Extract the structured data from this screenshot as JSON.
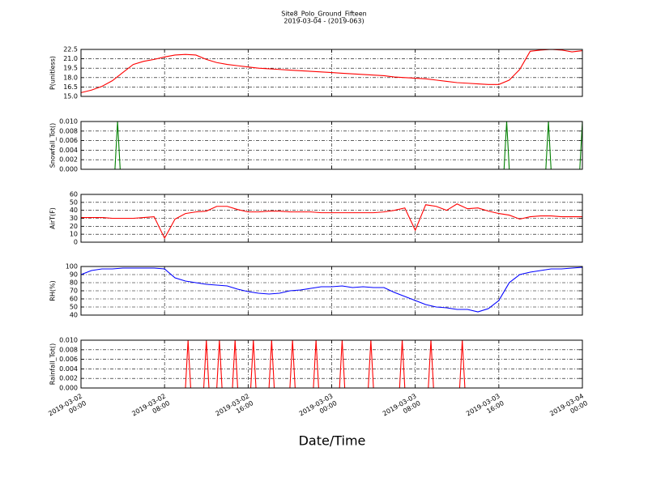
{
  "chart_data": [
    {
      "type": "line",
      "title": "Site8_Polo_Ground_Fifteen",
      "subtitle": "2019-03-04 - (2019-063)",
      "y_label": "P(unitless)",
      "color": "#ff0000",
      "grid": true,
      "xlim": [
        "2019-03-02 00:00",
        "2019-03-04 00:00"
      ],
      "ylim": [
        15,
        22.5
      ],
      "yticks": [
        {
          "value": 15,
          "label": "15.0"
        },
        16.5,
        {
          "value": 18,
          "label": "18.0"
        },
        19.5,
        {
          "value": 21,
          "label": "21.0"
        },
        22.5
      ],
      "x": [
        "2019-03-02 00:00",
        "2019-03-02 01:00",
        "2019-03-02 02:00",
        "2019-03-02 03:00",
        "2019-03-02 04:00",
        "2019-03-02 05:00",
        "2019-03-02 06:00",
        "2019-03-02 07:00",
        "2019-03-02 08:00",
        "2019-03-02 09:00",
        "2019-03-02 10:00",
        "2019-03-02 11:00",
        "2019-03-02 12:00",
        "2019-03-02 13:00",
        "2019-03-02 14:00",
        "2019-03-02 15:00",
        "2019-03-02 16:00",
        "2019-03-02 17:00",
        "2019-03-02 18:00",
        "2019-03-02 19:00",
        "2019-03-02 20:00",
        "2019-03-02 21:00",
        "2019-03-02 22:00",
        "2019-03-02 23:00",
        "2019-03-03 00:00",
        "2019-03-03 01:00",
        "2019-03-03 02:00",
        "2019-03-03 03:00",
        "2019-03-03 04:00",
        "2019-03-03 05:00",
        "2019-03-03 06:00",
        "2019-03-03 07:00",
        "2019-03-03 08:00",
        "2019-03-03 09:00",
        "2019-03-03 10:00",
        "2019-03-03 11:00",
        "2019-03-03 12:00",
        "2019-03-03 13:00",
        "2019-03-03 14:00",
        "2019-03-03 15:00",
        "2019-03-03 16:00",
        "2019-03-03 17:00",
        "2019-03-03 18:00",
        "2019-03-03 19:00",
        "2019-03-03 20:00",
        "2019-03-03 21:00",
        "2019-03-03 22:00",
        "2019-03-03 23:00",
        "2019-03-04 00:00"
      ],
      "values": [
        15.6,
        16.0,
        16.6,
        17.5,
        18.8,
        20.1,
        20.6,
        20.9,
        21.3,
        21.6,
        21.7,
        21.6,
        20.9,
        20.4,
        20.1,
        19.9,
        19.7,
        19.5,
        19.4,
        19.3,
        19.2,
        19.1,
        19.0,
        18.9,
        18.8,
        18.7,
        18.6,
        18.5,
        18.4,
        18.3,
        18.1,
        18.0,
        17.9,
        17.8,
        17.6,
        17.4,
        17.2,
        17.1,
        17.0,
        16.9,
        16.9,
        17.6,
        19.3,
        22.2,
        22.4,
        22.5,
        22.4,
        22.1,
        22.3
      ]
    },
    {
      "type": "line",
      "y_label": "Snowfall_Tot()",
      "color": "#007f00",
      "grid": true,
      "xlim": [
        "2019-03-02 00:00",
        "2019-03-04 00:00"
      ],
      "ylim": [
        0,
        0.01
      ],
      "yticks": [
        {
          "value": 0,
          "label": "0.000"
        },
        0.002,
        0.004,
        0.006,
        0.008,
        {
          "value": 0.01,
          "label": "0.010"
        }
      ],
      "x": [
        "2019-03-02 00:00",
        "2019-03-02 03:15",
        "2019-03-02 03:30",
        "2019-03-02 03:45",
        "2019-03-03 16:30",
        "2019-03-03 16:45",
        "2019-03-03 17:00",
        "2019-03-03 20:30",
        "2019-03-03 20:45",
        "2019-03-03 21:00",
        "2019-03-03 23:45",
        "2019-03-04 00:00"
      ],
      "values": [
        0,
        0,
        0.01,
        0,
        0,
        0.01,
        0,
        0,
        0.01,
        0,
        0,
        0.01
      ]
    },
    {
      "type": "line",
      "y_label": "AirT(F)",
      "color": "#ff0000",
      "grid": true,
      "xlim": [
        "2019-03-02 00:00",
        "2019-03-04 00:00"
      ],
      "ylim": [
        0,
        60
      ],
      "yticks": [
        0,
        10,
        20,
        30,
        40,
        50,
        60
      ],
      "x": [
        "2019-03-02 00:00",
        "2019-03-02 01:00",
        "2019-03-02 02:00",
        "2019-03-02 03:00",
        "2019-03-02 04:00",
        "2019-03-02 05:00",
        "2019-03-02 06:00",
        "2019-03-02 07:00",
        "2019-03-02 08:00",
        "2019-03-02 09:00",
        "2019-03-02 10:00",
        "2019-03-02 11:00",
        "2019-03-02 12:00",
        "2019-03-02 13:00",
        "2019-03-02 14:00",
        "2019-03-02 15:00",
        "2019-03-02 16:00",
        "2019-03-02 17:00",
        "2019-03-02 18:00",
        "2019-03-02 19:00",
        "2019-03-02 20:00",
        "2019-03-02 21:00",
        "2019-03-02 22:00",
        "2019-03-02 23:00",
        "2019-03-03 00:00",
        "2019-03-03 01:00",
        "2019-03-03 02:00",
        "2019-03-03 03:00",
        "2019-03-03 04:00",
        "2019-03-03 05:00",
        "2019-03-03 06:00",
        "2019-03-03 07:00",
        "2019-03-03 08:00",
        "2019-03-03 09:00",
        "2019-03-03 10:00",
        "2019-03-03 11:00",
        "2019-03-03 12:00",
        "2019-03-03 13:00",
        "2019-03-03 14:00",
        "2019-03-03 15:00",
        "2019-03-03 16:00",
        "2019-03-03 17:00",
        "2019-03-03 18:00",
        "2019-03-03 19:00",
        "2019-03-03 20:00",
        "2019-03-03 21:00",
        "2019-03-03 22:00",
        "2019-03-03 23:00",
        "2019-03-04 00:00"
      ],
      "values": [
        31,
        31,
        31,
        30,
        30,
        30,
        31,
        32,
        5,
        29,
        36,
        38,
        39,
        45,
        45,
        41,
        38,
        38,
        39,
        39,
        38,
        38,
        38,
        37,
        37,
        37,
        37,
        37,
        37,
        38,
        40,
        43,
        15,
        47,
        45,
        40,
        48,
        42,
        43,
        39,
        36,
        34,
        29,
        32,
        33,
        33,
        32,
        32,
        32
      ]
    },
    {
      "type": "line",
      "y_label": "RH(%)",
      "color": "#0000ff",
      "grid": true,
      "xlim": [
        "2019-03-02 00:00",
        "2019-03-04 00:00"
      ],
      "ylim": [
        40,
        100
      ],
      "yticks": [
        40,
        50,
        60,
        70,
        80,
        90,
        100
      ],
      "x": [
        "2019-03-02 00:00",
        "2019-03-02 01:00",
        "2019-03-02 02:00",
        "2019-03-02 03:00",
        "2019-03-02 04:00",
        "2019-03-02 05:00",
        "2019-03-02 06:00",
        "2019-03-02 07:00",
        "2019-03-02 08:00",
        "2019-03-02 09:00",
        "2019-03-02 10:00",
        "2019-03-02 11:00",
        "2019-03-02 12:00",
        "2019-03-02 13:00",
        "2019-03-02 14:00",
        "2019-03-02 15:00",
        "2019-03-02 16:00",
        "2019-03-02 17:00",
        "2019-03-02 18:00",
        "2019-03-02 19:00",
        "2019-03-02 20:00",
        "2019-03-02 21:00",
        "2019-03-02 22:00",
        "2019-03-02 23:00",
        "2019-03-03 00:00",
        "2019-03-03 01:00",
        "2019-03-03 02:00",
        "2019-03-03 03:00",
        "2019-03-03 04:00",
        "2019-03-03 05:00",
        "2019-03-03 06:00",
        "2019-03-03 07:00",
        "2019-03-03 08:00",
        "2019-03-03 09:00",
        "2019-03-03 10:00",
        "2019-03-03 11:00",
        "2019-03-03 12:00",
        "2019-03-03 13:00",
        "2019-03-03 14:00",
        "2019-03-03 15:00",
        "2019-03-03 16:00",
        "2019-03-03 17:00",
        "2019-03-03 18:00",
        "2019-03-03 19:00",
        "2019-03-03 20:00",
        "2019-03-03 21:00",
        "2019-03-03 22:00",
        "2019-03-03 23:00",
        "2019-03-04 00:00"
      ],
      "values": [
        90,
        95,
        97,
        97,
        98,
        98,
        98,
        98,
        97,
        86,
        82,
        80,
        78,
        77,
        76,
        72,
        69,
        67,
        66,
        67,
        70,
        71,
        73,
        75,
        75,
        76,
        74,
        75,
        74,
        74,
        68,
        63,
        58,
        53,
        50,
        49,
        47,
        47,
        44,
        48,
        58,
        80,
        90,
        93,
        95,
        97,
        97,
        98,
        99
      ]
    },
    {
      "type": "line",
      "y_label": "Rainfall_Tot()",
      "x_label": "Date/Time",
      "color": "#ff0000",
      "grid": true,
      "xlim": [
        "2019-03-02 00:00",
        "2019-03-04 00:00"
      ],
      "ylim": [
        0,
        0.01
      ],
      "yticks": [
        {
          "value": 0,
          "label": "0.000"
        },
        0.002,
        0.004,
        0.006,
        0.008,
        {
          "value": 0.01,
          "label": "0.010"
        }
      ],
      "xticks": [
        {
          "value": "2019-03-02 00:00",
          "label": [
            "2019-03-02",
            "00:00"
          ]
        },
        {
          "value": "2019-03-02 08:00",
          "label": [
            "2019-03-02",
            "08:00"
          ]
        },
        {
          "value": "2019-03-02 16:00",
          "label": [
            "2019-03-02",
            "16:00"
          ]
        },
        {
          "value": "2019-03-03 00:00",
          "label": [
            "2019-03-03",
            "00:00"
          ]
        },
        {
          "value": "2019-03-03 08:00",
          "label": [
            "2019-03-03",
            "08:00"
          ]
        },
        {
          "value": "2019-03-03 16:00",
          "label": [
            "2019-03-03",
            "16:00"
          ]
        },
        {
          "value": "2019-03-04 00:00",
          "label": [
            "2019-03-04",
            "00:00"
          ]
        }
      ],
      "x": [
        "2019-03-02 00:00",
        "2019-03-02 10:00",
        "2019-03-02 10:15",
        "2019-03-02 10:30",
        "2019-03-02 11:45",
        "2019-03-02 12:00",
        "2019-03-02 12:15",
        "2019-03-02 13:00",
        "2019-03-02 13:15",
        "2019-03-02 13:30",
        "2019-03-02 14:30",
        "2019-03-02 14:45",
        "2019-03-02 15:00",
        "2019-03-02 16:15",
        "2019-03-02 16:30",
        "2019-03-02 16:45",
        "2019-03-02 18:00",
        "2019-03-02 18:15",
        "2019-03-02 18:30",
        "2019-03-02 20:00",
        "2019-03-02 20:15",
        "2019-03-02 20:30",
        "2019-03-02 22:15",
        "2019-03-02 22:30",
        "2019-03-02 22:45",
        "2019-03-03 00:45",
        "2019-03-03 01:00",
        "2019-03-03 01:15",
        "2019-03-03 03:30",
        "2019-03-03 03:45",
        "2019-03-03 04:00",
        "2019-03-03 06:30",
        "2019-03-03 06:45",
        "2019-03-03 07:00",
        "2019-03-03 09:15",
        "2019-03-03 09:30",
        "2019-03-03 09:45",
        "2019-03-03 12:15",
        "2019-03-03 12:30",
        "2019-03-03 12:45",
        "2019-03-04 00:00"
      ],
      "values": [
        0,
        0,
        0.01,
        0,
        0,
        0.01,
        0,
        0,
        0.01,
        0,
        0,
        0.01,
        0,
        0,
        0.01,
        0,
        0,
        0.01,
        0,
        0,
        0.01,
        0,
        0,
        0.01,
        0,
        0,
        0.01,
        0,
        0,
        0.01,
        0,
        0,
        0.01,
        0,
        0,
        0.01,
        0,
        0,
        0.01,
        0,
        0
      ]
    }
  ]
}
